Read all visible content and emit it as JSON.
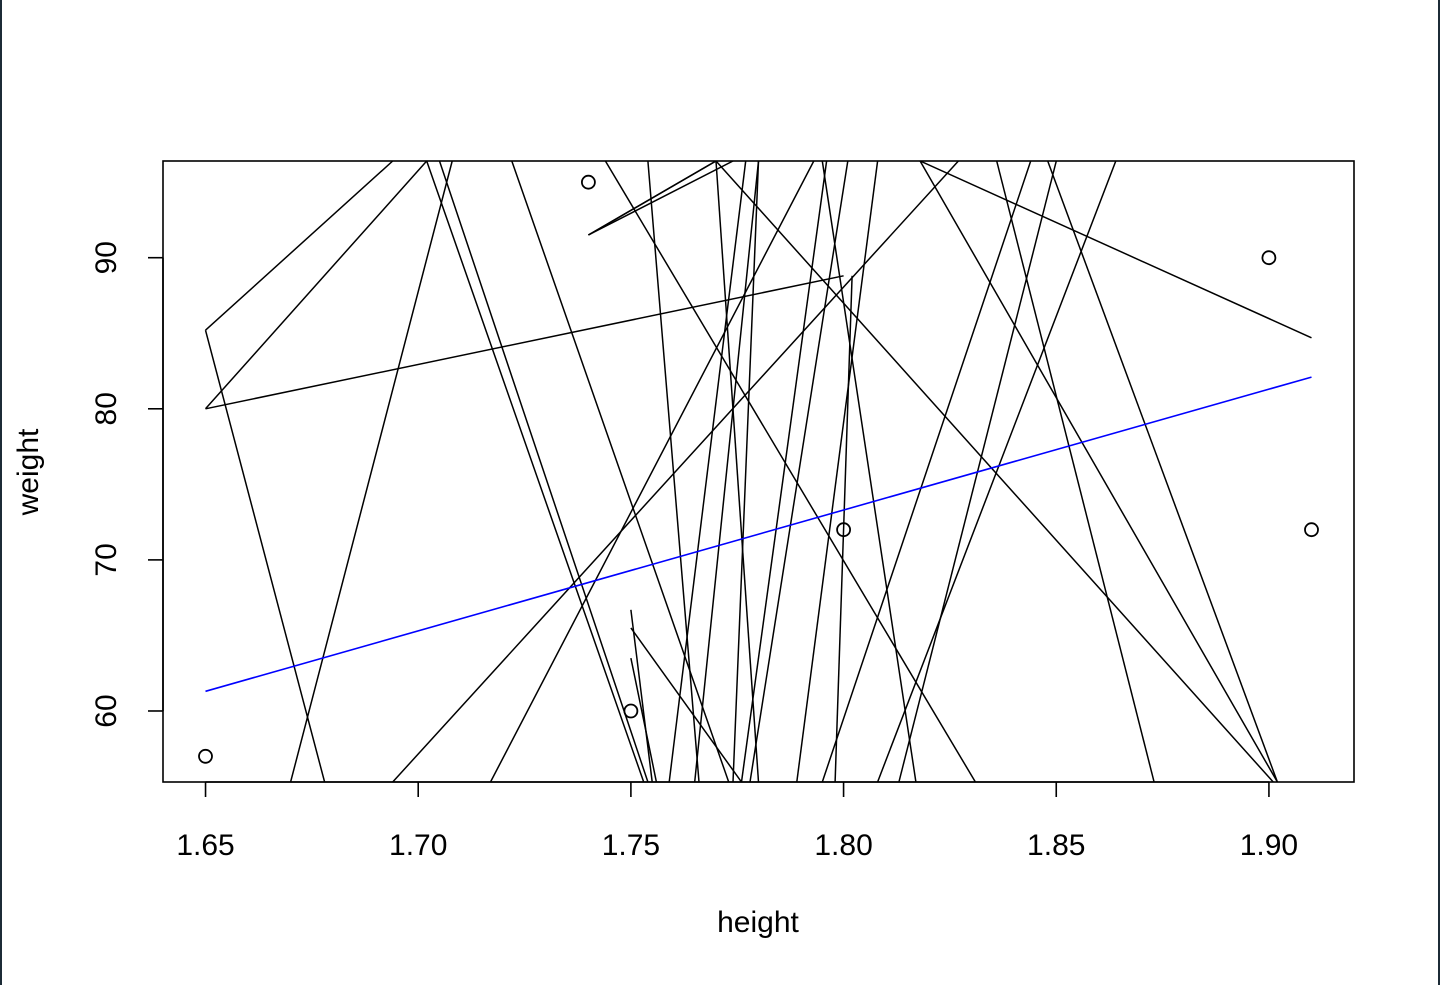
{
  "chart_data": {
    "type": "scatter",
    "xlabel": "height",
    "ylabel": "weight",
    "xlim": [
      1.64,
      1.92
    ],
    "ylim": [
      55.3,
      96.4
    ],
    "x_ticks": [
      1.65,
      1.7,
      1.75,
      1.8,
      1.85,
      1.9
    ],
    "x_tick_labels": [
      "1.65",
      "1.70",
      "1.75",
      "1.80",
      "1.85",
      "1.90"
    ],
    "y_ticks": [
      60,
      70,
      80,
      90
    ],
    "y_tick_labels": [
      "60",
      "70",
      "80",
      "90"
    ],
    "points": [
      {
        "x": 1.65,
        "y": 57
      },
      {
        "x": 1.74,
        "y": 95
      },
      {
        "x": 1.75,
        "y": 60
      },
      {
        "x": 1.8,
        "y": 72
      },
      {
        "x": 1.9,
        "y": 90
      },
      {
        "x": 1.91,
        "y": 72
      }
    ],
    "regression_line": {
      "color": "#0000ff",
      "x": [
        1.65,
        1.91
      ],
      "y": [
        61.3,
        82.1
      ]
    },
    "noise_lines_color": "#000000",
    "noise_lines": [
      {
        "x": [
          1.65,
          1.678
        ],
        "y": [
          85.2,
          55.3
        ]
      },
      {
        "x": [
          1.65,
          1.694
        ],
        "y": [
          85.2,
          96.4
        ]
      },
      {
        "x": [
          1.65,
          1.8
        ],
        "y": [
          80.0,
          88.8
        ]
      },
      {
        "x": [
          1.65,
          1.702
        ],
        "y": [
          80.0,
          96.4
        ]
      },
      {
        "x": [
          1.67,
          1.708
        ],
        "y": [
          55.3,
          96.4
        ]
      },
      {
        "x": [
          1.694,
          1.827
        ],
        "y": [
          55.3,
          96.4
        ]
      },
      {
        "x": [
          1.702,
          1.753
        ],
        "y": [
          96.4,
          55.3
        ]
      },
      {
        "x": [
          1.705,
          1.754
        ],
        "y": [
          96.4,
          55.3
        ]
      },
      {
        "x": [
          1.717,
          1.793
        ],
        "y": [
          55.3,
          96.4
        ]
      },
      {
        "x": [
          1.722,
          1.773
        ],
        "y": [
          96.4,
          55.3
        ]
      },
      {
        "x": [
          1.74,
          1.77
        ],
        "y": [
          91.5,
          96.4
        ]
      },
      {
        "x": [
          1.74,
          1.774
        ],
        "y": [
          91.5,
          96.4
        ]
      },
      {
        "x": [
          1.74,
          1.77
        ],
        "y": [
          91.5,
          96.4
        ]
      },
      {
        "x": [
          1.744,
          1.831
        ],
        "y": [
          96.4,
          55.3
        ]
      },
      {
        "x": [
          1.75,
          1.776
        ],
        "y": [
          65.5,
          55.3
        ]
      },
      {
        "x": [
          1.75,
          1.755
        ],
        "y": [
          66.7,
          55.3
        ]
      },
      {
        "x": [
          1.75,
          1.756
        ],
        "y": [
          63.5,
          55.3
        ]
      },
      {
        "x": [
          1.754,
          1.766
        ],
        "y": [
          96.4,
          55.3
        ]
      },
      {
        "x": [
          1.759,
          1.777
        ],
        "y": [
          55.3,
          96.4
        ]
      },
      {
        "x": [
          1.765,
          1.78
        ],
        "y": [
          55.3,
          96.4
        ]
      },
      {
        "x": [
          1.77,
          1.78
        ],
        "y": [
          96.4,
          55.3
        ]
      },
      {
        "x": [
          1.77,
          1.901
        ],
        "y": [
          96.4,
          55.3
        ]
      },
      {
        "x": [
          1.774,
          1.78
        ],
        "y": [
          55.3,
          96.4
        ]
      },
      {
        "x": [
          1.776,
          1.796
        ],
        "y": [
          55.3,
          96.4
        ]
      },
      {
        "x": [
          1.778,
          1.801
        ],
        "y": [
          55.3,
          96.4
        ]
      },
      {
        "x": [
          1.789,
          1.808
        ],
        "y": [
          55.3,
          96.4
        ]
      },
      {
        "x": [
          1.795,
          1.817
        ],
        "y": [
          96.4,
          55.3
        ]
      },
      {
        "x": [
          1.795,
          1.844
        ],
        "y": [
          55.3,
          96.4
        ]
      },
      {
        "x": [
          1.802,
          1.798
        ],
        "y": [
          88.8,
          55.3
        ]
      },
      {
        "x": [
          1.808,
          1.864
        ],
        "y": [
          55.3,
          96.4
        ]
      },
      {
        "x": [
          1.813,
          1.85
        ],
        "y": [
          55.3,
          96.4
        ]
      },
      {
        "x": [
          1.818,
          1.91
        ],
        "y": [
          96.4,
          84.7
        ]
      },
      {
        "x": [
          1.818,
          1.902
        ],
        "y": [
          96.4,
          55.3
        ]
      },
      {
        "x": [
          1.836,
          1.873
        ],
        "y": [
          96.4,
          55.3
        ]
      },
      {
        "x": [
          1.848,
          1.902
        ],
        "y": [
          96.4,
          55.3
        ]
      }
    ]
  }
}
